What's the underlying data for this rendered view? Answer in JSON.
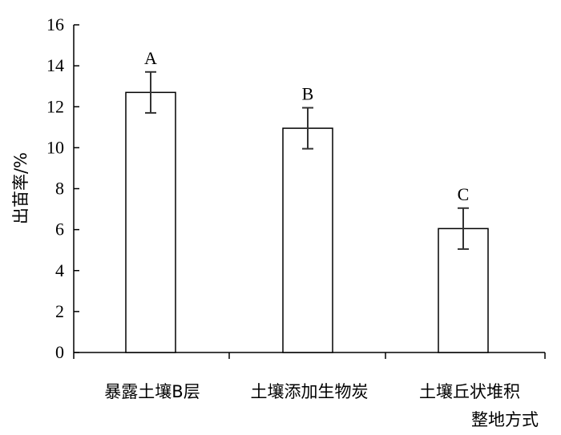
{
  "chart_data": {
    "type": "bar",
    "title": "",
    "xlabel": "",
    "ylabel": "出苗率/%",
    "ylim": [
      0,
      16
    ],
    "yticks": [
      "0",
      "2",
      "4",
      "6",
      "8",
      "10",
      "12",
      "14",
      "16"
    ],
    "grid": false,
    "categories": [
      [
        "暴露土壤B层"
      ],
      [
        "土壤添加生物炭"
      ],
      [
        "土壤丘状堆积",
        "整地方式"
      ]
    ],
    "values": [
      12.7,
      10.95,
      6.05
    ],
    "errors": [
      1.0,
      1.0,
      1.0
    ],
    "significance_letters": [
      "A",
      "B",
      "C"
    ],
    "bar_fill": "#ffffff",
    "bar_stroke": "#000000"
  }
}
